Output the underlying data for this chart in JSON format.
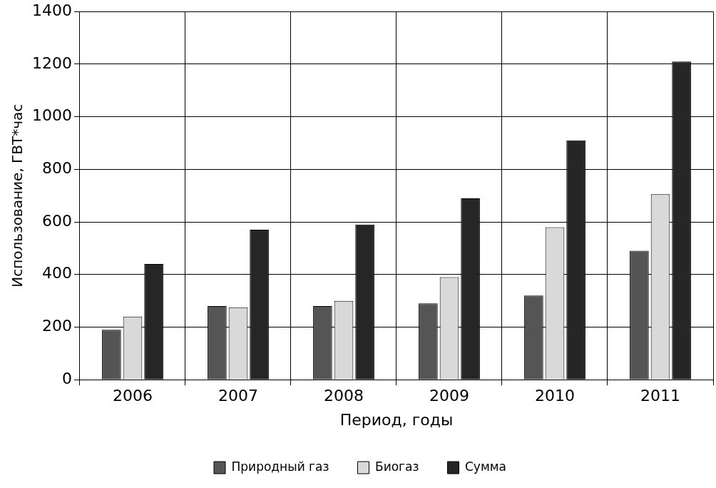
{
  "chart_data": {
    "type": "bar",
    "xlabel": "Период, годы",
    "ylabel": "Использование, ГВТ*час",
    "categories": [
      "2006",
      "2007",
      "2008",
      "2009",
      "2010",
      "2011"
    ],
    "series": [
      {
        "name": "Природный газ",
        "color": "#555555",
        "values": [
          190,
          280,
          280,
          290,
          320,
          490
        ]
      },
      {
        "name": "Биогаз",
        "color": "#d9d9d9",
        "values": [
          240,
          275,
          300,
          390,
          580,
          705
        ]
      },
      {
        "name": "Сумма",
        "color": "#262626",
        "values": [
          440,
          570,
          590,
          690,
          910,
          1210
        ]
      }
    ],
    "ylim": [
      0,
      1400
    ],
    "yticks": [
      0,
      200,
      400,
      600,
      800,
      1000,
      1200,
      1400
    ],
    "grid": true,
    "legend": "bottom"
  }
}
